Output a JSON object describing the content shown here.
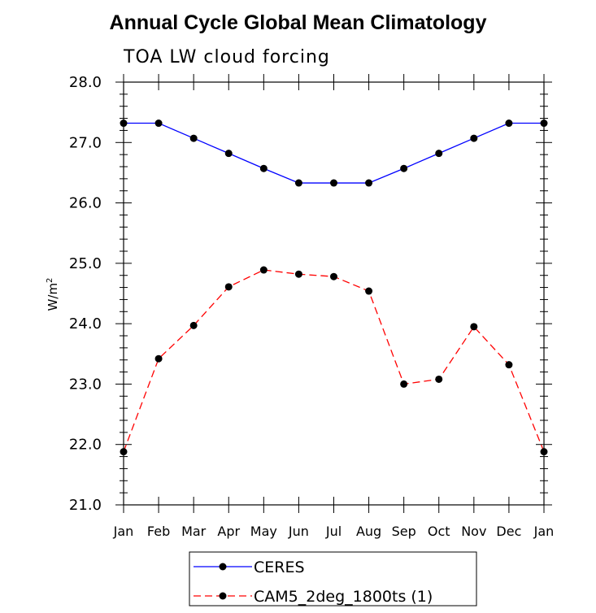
{
  "chart_data": {
    "type": "line",
    "title": "Annual Cycle Global Mean Climatology",
    "subtitle": "TOA LW cloud forcing",
    "ylabel": "W/m",
    "ylabel_sup": "2",
    "ylim": [
      21.0,
      28.0
    ],
    "yticks": [
      "21.0",
      "22.0",
      "23.0",
      "24.0",
      "25.0",
      "26.0",
      "27.0",
      "28.0"
    ],
    "categories": [
      "Jan",
      "Feb",
      "Mar",
      "Apr",
      "May",
      "Jun",
      "Jul",
      "Aug",
      "Sep",
      "Oct",
      "Nov",
      "Dec",
      "Jan"
    ],
    "series": [
      {
        "name": "CERES",
        "color": "#0000ff",
        "style": "solid",
        "values": [
          27.32,
          27.32,
          27.07,
          26.82,
          26.57,
          26.33,
          26.33,
          26.33,
          26.57,
          26.82,
          27.07,
          27.32,
          27.32
        ]
      },
      {
        "name": "CAM5_2deg_1800ts (1)",
        "color": "#ff0000",
        "style": "dashed",
        "values": [
          21.88,
          23.42,
          23.97,
          24.61,
          24.89,
          24.82,
          24.78,
          24.54,
          23.0,
          23.08,
          23.95,
          23.32,
          21.88
        ]
      }
    ]
  }
}
